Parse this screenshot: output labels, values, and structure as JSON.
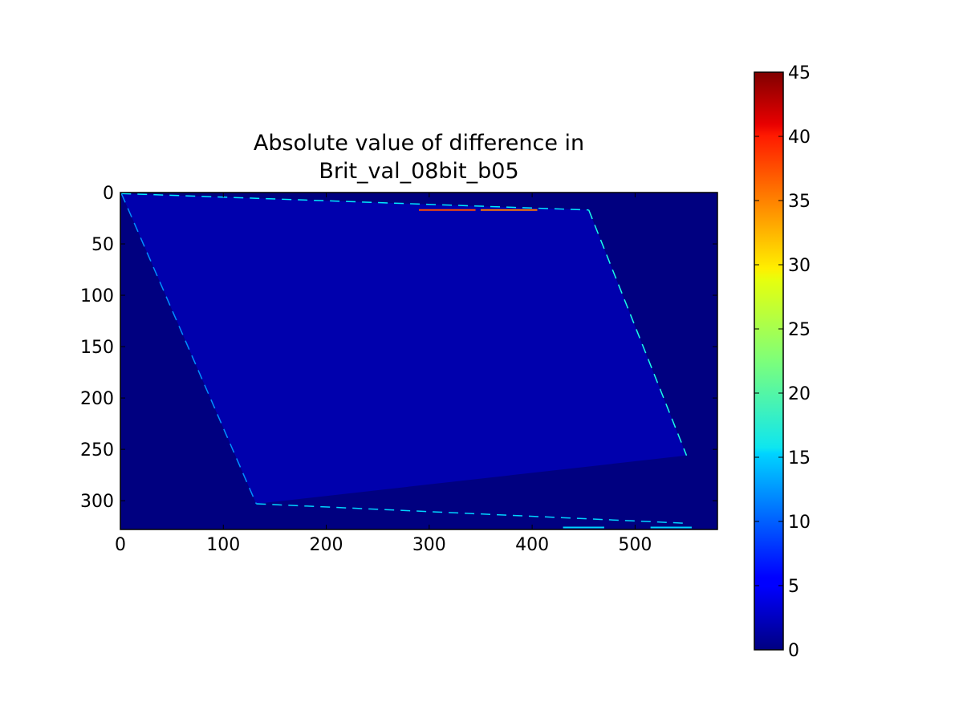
{
  "chart_data": {
    "type": "heatmap",
    "title": "Absolute value of difference in\nBrit_val_08bit_b05",
    "title_lines": [
      "Absolute value of difference in",
      "Brit_val_08bit_b05"
    ],
    "xlabel": "",
    "ylabel": "",
    "xlim": [
      0,
      580
    ],
    "ylim": [
      328,
      0
    ],
    "x_ticks": [
      0,
      100,
      200,
      300,
      400,
      500
    ],
    "y_ticks": [
      0,
      50,
      100,
      150,
      200,
      250,
      300
    ],
    "colormap": "jet",
    "colorbar": {
      "min": 0,
      "max": 45,
      "ticks": [
        0,
        5,
        10,
        15,
        20,
        25,
        30,
        35,
        40,
        45
      ]
    },
    "background_value": 0,
    "interior_value_range": [
      0,
      4
    ],
    "valid_region_corners": [
      [
        1,
        1
      ],
      [
        455,
        17
      ],
      [
        550,
        256
      ],
      [
        132,
        303
      ]
    ],
    "edge_features": [
      {
        "edge": "top",
        "from": [
          1,
          1
        ],
        "to": [
          455,
          17
        ],
        "typical_value": 16
      },
      {
        "edge": "right",
        "from": [
          455,
          17
        ],
        "to": [
          550,
          256
        ],
        "typical_value": 18
      },
      {
        "edge": "bottom",
        "from": [
          132,
          303
        ],
        "to": [
          550,
          322
        ],
        "typical_value": 15
      },
      {
        "edge": "left",
        "from": [
          1,
          1
        ],
        "to": [
          132,
          303
        ],
        "typical_value": 12
      }
    ],
    "highlight_segments": [
      {
        "from": [
          290,
          17
        ],
        "to": [
          345,
          17
        ],
        "value": 36
      },
      {
        "from": [
          350,
          17
        ],
        "to": [
          405,
          17
        ],
        "value": 34
      },
      {
        "from": [
          430,
          326
        ],
        "to": [
          470,
          326
        ],
        "value": 15
      },
      {
        "from": [
          515,
          326
        ],
        "to": [
          555,
          326
        ],
        "value": 15
      }
    ],
    "grid": false
  }
}
